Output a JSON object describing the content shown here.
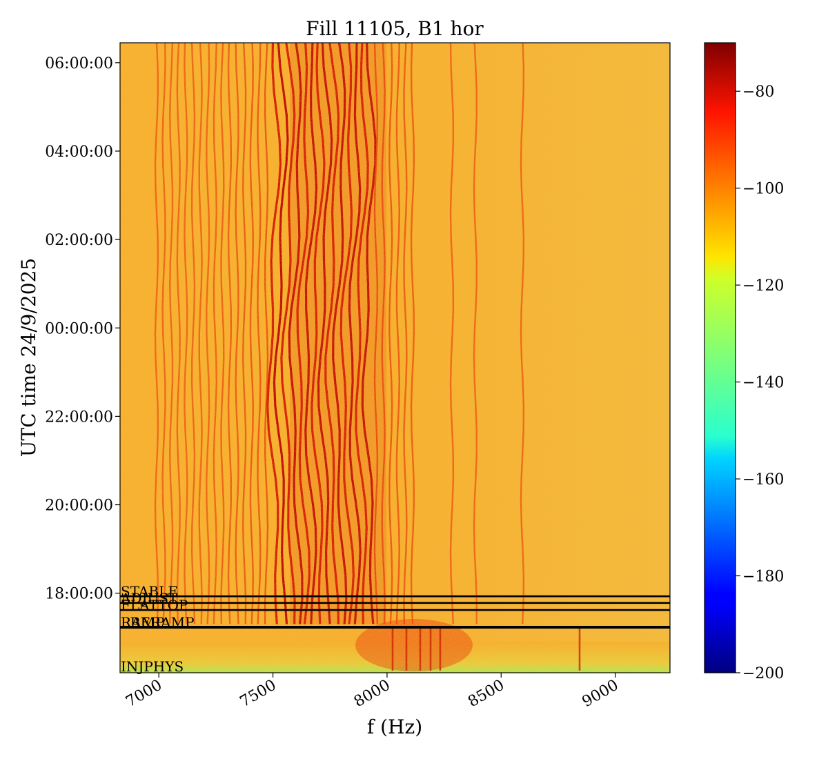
{
  "chart_data": {
    "type": "heatmap",
    "title": "Fill 11105, B1 hor",
    "xlabel": "f (Hz)",
    "ylabel": "UTC time 24/9/2025",
    "xlim": [
      6830,
      9240
    ],
    "x_ticks": [
      {
        "value": 7000,
        "label": "7000"
      },
      {
        "value": 7500,
        "label": "7500"
      },
      {
        "value": 8000,
        "label": "8000"
      },
      {
        "value": 8500,
        "label": "8500"
      },
      {
        "value": 9000,
        "label": "9000"
      }
    ],
    "ylim_hours": [
      16.2,
      30.45
    ],
    "y_ticks": [
      {
        "value": 18,
        "label": "18:00:00"
      },
      {
        "value": 20,
        "label": "20:00:00"
      },
      {
        "value": 22,
        "label": "22:00:00"
      },
      {
        "value": 24,
        "label": "00:00:00"
      },
      {
        "value": 26,
        "label": "02:00:00"
      },
      {
        "value": 28,
        "label": "04:00:00"
      },
      {
        "value": 30,
        "label": "06:00:00"
      }
    ],
    "colorbar": {
      "colormap": "jet",
      "range": [
        -200,
        -70
      ],
      "ticks": [
        {
          "value": -80,
          "label": "−80"
        },
        {
          "value": -100,
          "label": "−100"
        },
        {
          "value": -120,
          "label": "−120"
        },
        {
          "value": -140,
          "label": "−140"
        },
        {
          "value": -160,
          "label": "−160"
        },
        {
          "value": -180,
          "label": "−180"
        },
        {
          "value": -200,
          "label": "−200"
        }
      ]
    },
    "beam_mode_markers": [
      {
        "label": "STABLE",
        "time_hours": 17.93
      },
      {
        "label": "ADJUST",
        "time_hours": 17.78
      },
      {
        "label": "FLATTOP",
        "time_hours": 17.62
      },
      {
        "label": "PRERAMP",
        "time_hours": 17.23
      },
      {
        "label": "RAMP",
        "time_hours": 17.23
      },
      {
        "label": "INJPHYS",
        "time_hours": 16.2
      }
    ],
    "grid": false
  }
}
